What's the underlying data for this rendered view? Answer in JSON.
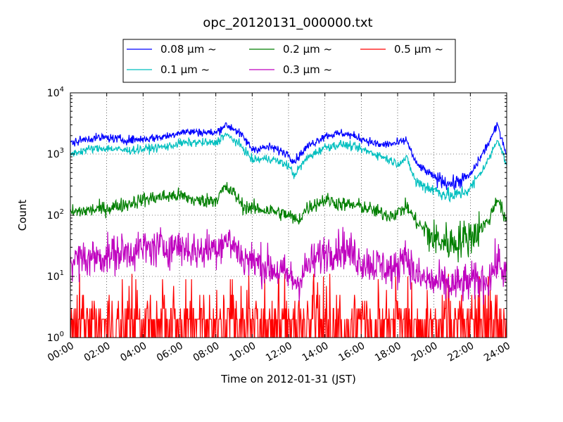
{
  "chart_data": {
    "type": "line",
    "title": "opc_20120131_000000.txt",
    "xlabel": "Time on 2012-01-31 (JST)",
    "ylabel": "Count",
    "y_scale": "log",
    "ylim": [
      1,
      10000
    ],
    "xlim_hours": [
      0,
      24
    ],
    "grid": true,
    "legend_position": "top",
    "x_ticks": [
      "00:00",
      "02:00",
      "04:00",
      "06:00",
      "08:00",
      "10:00",
      "12:00",
      "14:00",
      "16:00",
      "18:00",
      "20:00",
      "22:00",
      "24:00"
    ],
    "y_ticks": [
      {
        "base": "10",
        "exp": "0"
      },
      {
        "base": "10",
        "exp": "1"
      },
      {
        "base": "10",
        "exp": "2"
      },
      {
        "base": "10",
        "exp": "3"
      },
      {
        "base": "10",
        "exp": "4"
      }
    ],
    "series": [
      {
        "name": "0.08 μm ~",
        "color": "#0000ff",
        "hours": [
          0,
          1,
          2,
          3,
          4,
          5,
          5.5,
          6,
          7,
          8,
          8.5,
          9,
          9.5,
          10,
          11,
          12,
          12.3,
          13,
          14,
          15,
          16,
          17,
          18,
          18.5,
          19,
          20,
          21,
          22,
          23,
          23.5,
          24
        ],
        "values": [
          1500,
          1800,
          1850,
          1700,
          1750,
          1900,
          2000,
          2300,
          2300,
          2200,
          3000,
          2600,
          1900,
          1200,
          1300,
          1000,
          750,
          1300,
          2000,
          2200,
          1800,
          1400,
          1500,
          1700,
          700,
          420,
          320,
          450,
          1500,
          3000,
          1000
        ]
      },
      {
        "name": "0.1 μm ~",
        "color": "#00bfbf",
        "hours": [
          0,
          1,
          2,
          3,
          4,
          5,
          5.5,
          6,
          7,
          8,
          8.5,
          9,
          9.5,
          10,
          11,
          12,
          12.3,
          13,
          14,
          15,
          16,
          17,
          18,
          18.5,
          19,
          20,
          21,
          22,
          23,
          23.5,
          24
        ],
        "values": [
          1000,
          1200,
          1250,
          1150,
          1200,
          1300,
          1350,
          1500,
          1550,
          1500,
          2100,
          1700,
          1250,
          800,
          850,
          650,
          450,
          850,
          1300,
          1450,
          1200,
          950,
          700,
          850,
          350,
          260,
          200,
          270,
          800,
          1800,
          650
        ]
      },
      {
        "name": "0.2 μm ~",
        "color": "#007f00",
        "hours": [
          0,
          1,
          2,
          3,
          4,
          5,
          6,
          7,
          8,
          8.5,
          9,
          9.5,
          10,
          11,
          12,
          12.5,
          13,
          14,
          15,
          16,
          17,
          17.5,
          18,
          18.5,
          19,
          20,
          21,
          22,
          23,
          23.5,
          24
        ],
        "values": [
          110,
          120,
          130,
          150,
          180,
          200,
          210,
          170,
          180,
          280,
          230,
          140,
          130,
          120,
          100,
          80,
          130,
          180,
          150,
          140,
          110,
          100,
          110,
          140,
          80,
          40,
          35,
          45,
          80,
          200,
          70
        ]
      },
      {
        "name": "0.3 μm ~",
        "color": "#bf00bf",
        "hours": [
          0,
          1,
          2,
          3,
          4,
          5,
          6,
          7,
          8,
          8.5,
          9,
          9.5,
          10,
          11,
          12,
          12.5,
          13,
          14,
          15,
          16,
          17,
          18,
          18.3,
          19,
          20,
          21,
          22,
          23,
          23.5,
          24
        ],
        "values": [
          18,
          20,
          22,
          25,
          28,
          30,
          32,
          25,
          30,
          40,
          32,
          20,
          18,
          14,
          10,
          8,
          14,
          25,
          30,
          18,
          15,
          12,
          28,
          10,
          8,
          7,
          8,
          9,
          18,
          10
        ]
      },
      {
        "name": "0.5 μm ~",
        "color": "#ff0000",
        "hours": [
          0,
          4,
          8,
          12,
          16,
          18,
          20,
          24
        ],
        "values": [
          2,
          2,
          2,
          1.5,
          1.5,
          1.5,
          1.2,
          1.5
        ]
      }
    ]
  }
}
